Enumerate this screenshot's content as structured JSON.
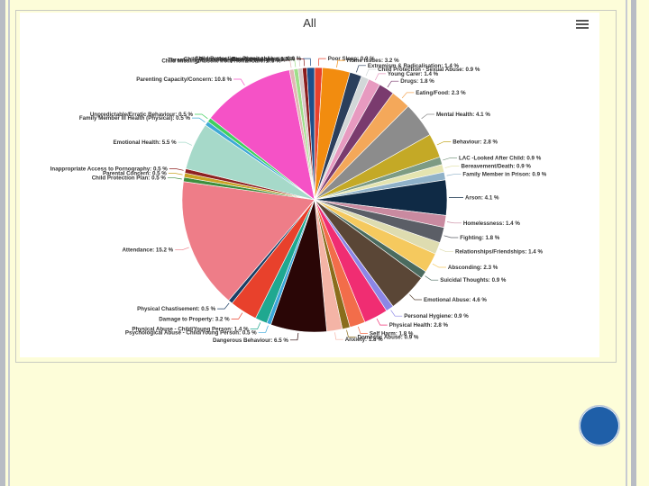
{
  "chart_data": {
    "type": "pie",
    "title": "All",
    "series": [
      {
        "label": "Poor Sleep: 0.9 %",
        "value": 0.9,
        "color": "#e8412c"
      },
      {
        "label": "Home Issues: 3.2 %",
        "value": 3.2,
        "color": "#f28c0f"
      },
      {
        "label": "Extremism & Radicalisation: 1.4 %",
        "value": 1.4,
        "color": "#2b3f5c"
      },
      {
        "label": "Child Protection - Sexual Abuse: 0.9 %",
        "value": 0.9,
        "color": "#d2d7d8"
      },
      {
        "label": "Young Carer: 1.4 %",
        "value": 1.4,
        "color": "#e79ac0"
      },
      {
        "label": "Drugs: 1.8 %",
        "value": 1.8,
        "color": "#7a3b6e"
      },
      {
        "label": "Eating/Food: 2.3 %",
        "value": 2.3,
        "color": "#f4a85a"
      },
      {
        "label": "Mental Health: 4.1 %",
        "value": 4.1,
        "color": "#8c8c8c"
      },
      {
        "label": "Behaviour: 2.8 %",
        "value": 2.8,
        "color": "#c4a926"
      },
      {
        "label": "LAC -Looked After Child: 0.9 %",
        "value": 0.9,
        "color": "#7d9b83"
      },
      {
        "label": "Bereavement/Death: 0.9 %",
        "value": 0.9,
        "color": "#e4e4b0"
      },
      {
        "label": "Family Member in Prison: 0.9 %",
        "value": 0.9,
        "color": "#8fb1c8"
      },
      {
        "label": "Arson: 4.1 %",
        "value": 4.1,
        "color": "#0f2a45"
      },
      {
        "label": "Homelessness: 1.4 %",
        "value": 1.4,
        "color": "#c98aa0"
      },
      {
        "label": "Fighting: 1.8 %",
        "value": 1.8,
        "color": "#5b5e66"
      },
      {
        "label": "Relationships/Friendships: 1.4 %",
        "value": 1.4,
        "color": "#dedcb0"
      },
      {
        "label": "Absconding: 2.3 %",
        "value": 2.3,
        "color": "#f5c95e"
      },
      {
        "label": "Suicidal Thoughts: 0.9 %",
        "value": 0.9,
        "color": "#4b6b5f"
      },
      {
        "label": "Emotional Abuse: 4.6 %",
        "value": 4.6,
        "color": "#5a4636"
      },
      {
        "label": "Personal Hygiene: 0.9 %",
        "value": 0.9,
        "color": "#8b86e6"
      },
      {
        "label": "Physical Health: 2.8 %",
        "value": 2.8,
        "color": "#f02d72"
      },
      {
        "label": "Self Harm: 1.8 %",
        "value": 1.8,
        "color": "#f26d4a"
      },
      {
        "label": "Domestic Abuse: 0.9 %",
        "value": 0.9,
        "color": "#8a6d1c"
      },
      {
        "label": "Anxiety: 1.8 %",
        "value": 1.8,
        "color": "#f4b4a6"
      },
      {
        "label": "Dangerous Behaviour: 6.5 %",
        "value": 6.5,
        "color": "#2a0606"
      },
      {
        "label": "Psychological Abuse - Child/Young Person: 0.5 %",
        "value": 0.5,
        "color": "#3aa6d9"
      },
      {
        "label": "Physical Abuse - Child/Young Person: 1.4 %",
        "value": 1.4,
        "color": "#1fa890"
      },
      {
        "label": "Damage to Property: 3.2 %",
        "value": 3.2,
        "color": "#e8412c"
      },
      {
        "label": "Physical Chastisement: 0.5 %",
        "value": 0.5,
        "color": "#1b3f66"
      },
      {
        "label": "Attendance: 15.2 %",
        "value": 15.2,
        "color": "#ee7d88"
      },
      {
        "label": "Child Protection Plan: 0.5 %",
        "value": 0.5,
        "color": "#3e8f3e"
      },
      {
        "label": "Parental Concern: 0.5 %",
        "value": 0.5,
        "color": "#c9a324"
      },
      {
        "label": "Inappropriate Access to Pornography: 0.5 %",
        "value": 0.5,
        "color": "#8e2222"
      },
      {
        "label": "Emotional Health: 5.5 %",
        "value": 5.5,
        "color": "#a6d9c9"
      },
      {
        "label": "Family Member Ill Health (Physical): 0.5 %",
        "value": 0.5,
        "color": "#3fa9d6"
      },
      {
        "label": "Unpredictable/Erratic Behaviour: 0.5 %",
        "value": 0.5,
        "color": "#3fcf5f"
      },
      {
        "label": "Parenting Capacity/Concern: 10.8 %",
        "value": 10.8,
        "color": "#f552c6"
      },
      {
        "label": "Child Missing/Absent from Home/Care: 0.5 %",
        "value": 0.5,
        "color": "#e3b6b6"
      },
      {
        "label": "Threatening Behaviour (Peer on Peer): 0.5 %",
        "value": 0.5,
        "color": "#9fdf8a"
      },
      {
        "label": "Eating Disorder: 0.5 %",
        "value": 0.5,
        "color": "#d8c6c6"
      },
      {
        "label": "Child Protection - Emotional Abuse: 0.5 %",
        "value": 0.5,
        "color": "#8b1c1c"
      },
      {
        "label": "Child Protection - Physical Abuse: 0.9 %",
        "value": 0.9,
        "color": "#1d4f8a"
      }
    ]
  },
  "ui": {
    "menu_icon": "hamburger-icon"
  }
}
